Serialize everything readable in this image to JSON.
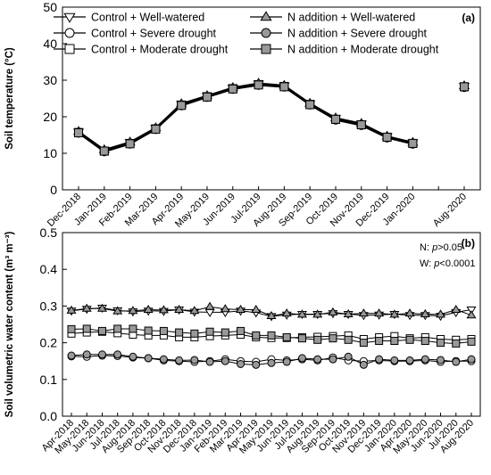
{
  "chart_data": [
    {
      "type": "line",
      "panel_label": "(a)",
      "ylabel": "Soil temperature (°C)",
      "ylim": [
        0,
        50
      ],
      "yticks": [
        0,
        10,
        20,
        30,
        40,
        50
      ],
      "categories": [
        "Dec-2018",
        "Jan-2019",
        "Feb-2019",
        "Mar-2019",
        "Apr-2019",
        "May-2019",
        "Jun-2019",
        "Jul-2019",
        "Aug-2019",
        "Sep-2019",
        "Oct-2019",
        "Nov-2019",
        "Dec-2019",
        "Jan-2020",
        "",
        "Aug-2020"
      ],
      "legend_placement": "top",
      "series": [
        {
          "name": "Control + Well-watered",
          "marker": "triangle-down",
          "fill": "#ffffff",
          "values": [
            15.8,
            10.8,
            12.9,
            16.8,
            23.4,
            25.6,
            27.8,
            29.0,
            28.4,
            23.5,
            19.5,
            18.0,
            14.5,
            12.8,
            null,
            28.3
          ]
        },
        {
          "name": "Control + Severe drought",
          "marker": "circle",
          "fill": "#ffffff",
          "values": [
            15.6,
            10.5,
            12.6,
            16.6,
            23.1,
            25.4,
            27.6,
            28.7,
            28.2,
            23.3,
            19.2,
            17.7,
            14.3,
            12.6,
            null,
            28.1
          ]
        },
        {
          "name": "Control + Moderate drought",
          "marker": "square",
          "fill": "#ffffff",
          "values": [
            15.7,
            10.6,
            12.7,
            16.7,
            23.2,
            25.5,
            27.7,
            28.8,
            28.3,
            23.4,
            19.3,
            17.8,
            14.4,
            12.7,
            null,
            28.2
          ]
        },
        {
          "name": "N addition + Well-watered",
          "marker": "triangle-up",
          "fill": "#999999",
          "values": [
            16.0,
            11.0,
            13.1,
            17.0,
            23.6,
            25.8,
            28.0,
            29.2,
            28.6,
            23.7,
            19.7,
            18.2,
            14.7,
            13.0,
            null,
            28.5
          ]
        },
        {
          "name": "N addition + Severe drought",
          "marker": "circle",
          "fill": "#999999",
          "values": [
            15.5,
            10.4,
            12.5,
            16.5,
            23.0,
            25.3,
            27.5,
            28.6,
            28.1,
            23.2,
            19.1,
            17.6,
            14.2,
            12.5,
            null,
            28.0
          ]
        },
        {
          "name": "N addition + Moderate drought",
          "marker": "square",
          "fill": "#999999",
          "values": [
            15.6,
            10.6,
            12.6,
            16.6,
            23.1,
            25.4,
            27.6,
            28.7,
            28.2,
            23.3,
            19.3,
            17.8,
            14.4,
            12.7,
            null,
            28.2
          ]
        }
      ]
    },
    {
      "type": "line",
      "panel_label": "(b)",
      "ylabel": "Soil volumetric water content (m³ m⁻³)",
      "ylim": [
        0,
        0.5
      ],
      "yticks": [
        "0.0",
        "0.1",
        "0.2",
        "0.3",
        "0.4",
        "0.5"
      ],
      "annotations": [
        {
          "prefix": "N:  ",
          "stat": "p",
          "rest": ">0.05"
        },
        {
          "prefix": "W:  ",
          "stat": "p",
          "rest": "<0.0001"
        }
      ],
      "categories": [
        "Apr-2018",
        "May-2018",
        "Jun-2018",
        "Jul-2018",
        "Aug-2018",
        "Sep-2018",
        "Oct-2018",
        "Nov-2018",
        "Dec-2018",
        "Jan-2019",
        "Feb-2019",
        "Mar-2019",
        "Apr-2019",
        "May-2019",
        "Jun-2019",
        "Jul-2019",
        "Aug-2019",
        "Sep-2019",
        "Oct-2019",
        "Nov-2019",
        "Dec-2019",
        "Jan-2020",
        "Apr-2020",
        "May-2020",
        "Jun-2020",
        "Jul-2020",
        "Aug-2020"
      ],
      "series": [
        {
          "name": "Control + Well-watered",
          "marker": "triangle-down",
          "fill": "#ffffff",
          "values": [
            0.287,
            0.292,
            0.295,
            0.288,
            0.285,
            0.287,
            0.286,
            0.29,
            0.284,
            0.283,
            0.283,
            0.287,
            0.282,
            0.272,
            0.276,
            0.278,
            0.278,
            0.28,
            0.278,
            0.275,
            0.276,
            0.278,
            0.275,
            0.275,
            0.273,
            0.283,
            0.29
          ]
        },
        {
          "name": "Control + Severe drought",
          "marker": "circle",
          "fill": "#ffffff",
          "values": [
            0.163,
            0.162,
            0.165,
            0.164,
            0.16,
            0.158,
            0.152,
            0.15,
            0.148,
            0.15,
            0.155,
            0.15,
            0.148,
            0.155,
            0.152,
            0.155,
            0.152,
            0.16,
            0.152,
            0.15,
            0.152,
            0.15,
            0.15,
            0.152,
            0.148,
            0.15,
            0.15
          ]
        },
        {
          "name": "Control + Moderate drought",
          "marker": "square",
          "fill": "#ffffff",
          "values": [
            0.225,
            0.228,
            0.23,
            0.226,
            0.222,
            0.22,
            0.22,
            0.215,
            0.215,
            0.218,
            0.22,
            0.222,
            0.215,
            0.213,
            0.213,
            0.215,
            0.216,
            0.218,
            0.22,
            0.21,
            0.215,
            0.218,
            0.212,
            0.215,
            0.21,
            0.208,
            0.21
          ]
        },
        {
          "name": "N addition + Well-watered",
          "marker": "triangle-up",
          "fill": "#999999",
          "values": [
            0.288,
            0.293,
            0.293,
            0.286,
            0.287,
            0.29,
            0.289,
            0.29,
            0.287,
            0.298,
            0.292,
            0.29,
            0.29,
            0.273,
            0.28,
            0.277,
            0.277,
            0.283,
            0.278,
            0.28,
            0.28,
            0.277,
            0.28,
            0.278,
            0.277,
            0.29,
            0.275
          ]
        },
        {
          "name": "N addition + Severe drought",
          "marker": "circle",
          "fill": "#999999",
          "values": [
            0.165,
            0.168,
            0.168,
            0.168,
            0.162,
            0.158,
            0.155,
            0.152,
            0.153,
            0.148,
            0.15,
            0.142,
            0.14,
            0.145,
            0.148,
            0.158,
            0.155,
            0.155,
            0.162,
            0.14,
            0.155,
            0.152,
            0.152,
            0.155,
            0.153,
            0.148,
            0.155
          ]
        },
        {
          "name": "N addition + Moderate drought",
          "marker": "square",
          "fill": "#999999",
          "values": [
            0.237,
            0.238,
            0.232,
            0.238,
            0.238,
            0.233,
            0.232,
            0.228,
            0.225,
            0.23,
            0.228,
            0.232,
            0.22,
            0.22,
            0.215,
            0.212,
            0.208,
            0.212,
            0.208,
            0.2,
            0.205,
            0.205,
            0.208,
            0.205,
            0.2,
            0.198,
            0.203
          ]
        }
      ]
    }
  ]
}
